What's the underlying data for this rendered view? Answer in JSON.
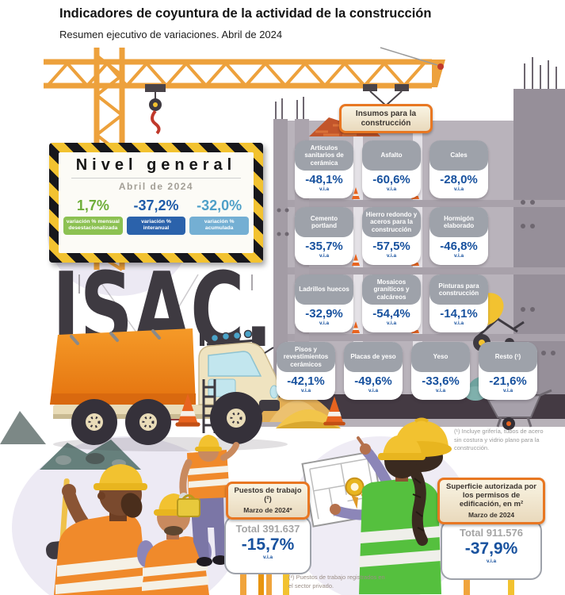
{
  "header": {
    "title": "Indicadores de coyuntura de la actividad de la construcción",
    "subtitle": "Resumen ejecutivo de variaciones. Abril de 2024"
  },
  "nivel_general": {
    "title": "Nivel general",
    "period": "Abril de 2024",
    "stats": [
      {
        "value": "1,7%",
        "label": "variación % mensual desestacionalizada",
        "color": "#6fae3a"
      },
      {
        "value": "-37,2%",
        "label": "variación % interanual",
        "color": "#1f5ca9"
      },
      {
        "value": "-32,0%",
        "label": "variación % acumulada",
        "color": "#4fa0c8"
      }
    ]
  },
  "isac": {
    "label": "ISAC."
  },
  "insumos": {
    "header": "Insumos para la construcción",
    "unit_label": "v.i.a",
    "items": [
      {
        "name": "Artículos sanitarios de cerámica",
        "value": "-48,1%"
      },
      {
        "name": "Asfalto",
        "value": "-60,6%"
      },
      {
        "name": "Cales",
        "value": "-28,0%"
      },
      {
        "name": "Cemento portland",
        "value": "-35,7%"
      },
      {
        "name": "Hierro redondo y aceros para la construcción",
        "value": "-57,5%"
      },
      {
        "name": "Hormigón elaborado",
        "value": "-46,8%"
      },
      {
        "name": "Ladrillos huecos",
        "value": "-32,9%"
      },
      {
        "name": "Mosaicos graníticos y calcáreos",
        "value": "-54,4%"
      },
      {
        "name": "Pinturas para construcción",
        "value": "-14,1%"
      },
      {
        "name": "Pisos y revestimientos cerámicos",
        "value": "-42,1%"
      },
      {
        "name": "Placas de yeso",
        "value": "-49,6%"
      },
      {
        "name": "Yeso",
        "value": "-33,6%"
      },
      {
        "name": "Resto (¹)",
        "value": "-21,6%"
      }
    ],
    "footnote": "(¹) Incluye grifería, tubos de acero sin costura y vidrio plano para la construcción."
  },
  "puestos": {
    "title": "Puestos de trabajo (²)",
    "period": "Marzo de 2024*",
    "total": "Total 391.637",
    "value": "-15,7%",
    "unit": "v.i.a"
  },
  "superficie": {
    "title": "Superficie autorizada por los permisos de edificación, en m²",
    "period": "Marzo de 2024",
    "total": "Total 911.576",
    "value": "-37,9%",
    "unit": "v.i.a"
  },
  "footnote_2": "(²) Puestos de trabajo registrados en el sector privado.",
  "colors": {
    "accent_orange": "#e87722",
    "hazard_yellow": "#f2c230",
    "value_blue": "#17519e",
    "stat_green": "#6fae3a",
    "stat_dark_blue": "#1f5ca9",
    "stat_light_blue": "#4fa0c8",
    "label_gray": "#9ea2aa"
  }
}
